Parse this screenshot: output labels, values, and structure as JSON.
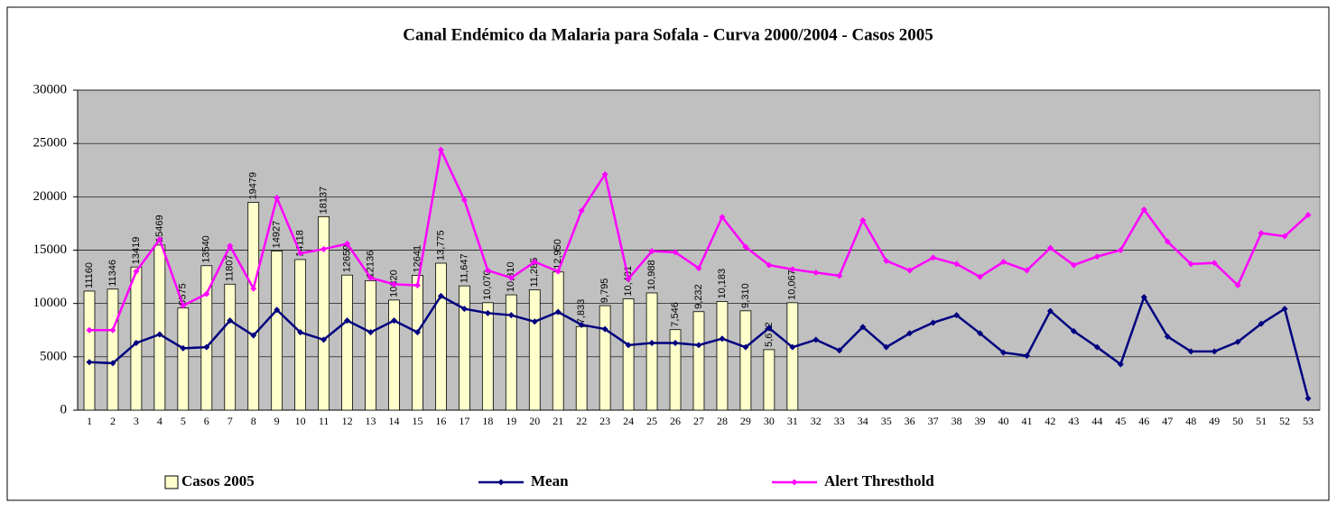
{
  "chart_data": {
    "type": "bar",
    "title": "Canal Endémico da Malaria para Sofala - Curva 2000/2004 - Casos 2005",
    "categories": [
      "1",
      "2",
      "3",
      "4",
      "5",
      "6",
      "7",
      "8",
      "9",
      "10",
      "11",
      "12",
      "13",
      "14",
      "15",
      "16",
      "17",
      "18",
      "19",
      "20",
      "21",
      "22",
      "23",
      "24",
      "25",
      "26",
      "27",
      "28",
      "29",
      "30",
      "31",
      "32",
      "33",
      "34",
      "35",
      "36",
      "37",
      "38",
      "39",
      "40",
      "41",
      "42",
      "43",
      "44",
      "45",
      "46",
      "47",
      "48",
      "49",
      "50",
      "51",
      "52",
      "53"
    ],
    "series": [
      {
        "name": "Casos 2005",
        "type": "bar",
        "color": "#ffffcc",
        "values": [
          11160,
          11346,
          13419,
          15469,
          9575,
          13540,
          11807,
          19479,
          14927,
          14118,
          18137,
          12659,
          12136,
          10320,
          12641,
          13775,
          11647,
          10070,
          10810,
          11285,
          12950,
          7833,
          9795,
          10431,
          10988,
          7546,
          9232,
          10183,
          9310,
          5672,
          10067,
          null,
          null,
          null,
          null,
          null,
          null,
          null,
          null,
          null,
          null,
          null,
          null,
          null,
          null,
          null,
          null,
          null,
          null,
          null,
          null,
          null,
          null
        ],
        "value_labels": [
          null,
          null,
          null,
          null,
          null,
          null,
          null,
          null,
          null,
          null,
          null,
          null,
          null,
          null,
          null,
          "13,775",
          "11,647",
          "10,070",
          "10,810",
          "11,285",
          "12,950",
          "7,833",
          "9,795",
          "10,431",
          "10,988",
          "7,546",
          "9,232",
          "10,183",
          "9,310",
          "5,672",
          "10,067",
          null,
          null,
          null,
          null,
          null,
          null,
          null,
          null,
          null,
          null,
          null,
          null,
          null,
          null,
          null,
          null,
          null,
          null,
          null,
          null,
          null,
          null
        ]
      },
      {
        "name": "Mean",
        "type": "line",
        "color": "#000080",
        "values": [
          4500,
          4400,
          6300,
          7100,
          5800,
          5900,
          8400,
          7000,
          9400,
          7300,
          6600,
          8400,
          7300,
          8400,
          7300,
          10700,
          9500,
          9100,
          8900,
          8300,
          9200,
          8000,
          7600,
          6100,
          6300,
          6300,
          6100,
          6700,
          5900,
          7700,
          5900,
          6600,
          5600,
          7800,
          5900,
          7200,
          8200,
          8900,
          7200,
          5400,
          5100,
          9300,
          7400,
          5900,
          4300,
          10600,
          6900,
          5500,
          5500,
          6400,
          8100,
          9500,
          1100
        ]
      },
      {
        "name": "Alert Thresthold",
        "type": "line",
        "color": "#ff00ff",
        "values": [
          7500,
          7500,
          13000,
          16000,
          9800,
          10900,
          15400,
          11400,
          19900,
          14700,
          15100,
          15600,
          12400,
          11800,
          11700,
          24400,
          19700,
          13100,
          12400,
          13900,
          13000,
          18700,
          22100,
          12300,
          14900,
          14800,
          13300,
          18100,
          15300,
          13600,
          13200,
          12900,
          12600,
          17800,
          14000,
          13100,
          14300,
          13700,
          12500,
          13900,
          13100,
          15200,
          13600,
          14400,
          15000,
          18800,
          15800,
          13700,
          13800,
          11700,
          16600,
          16300,
          18300
        ]
      }
    ],
    "ylim": [
      0,
      30000
    ],
    "yticks": [
      0,
      5000,
      10000,
      15000,
      20000,
      25000,
      30000
    ],
    "grid": true
  }
}
